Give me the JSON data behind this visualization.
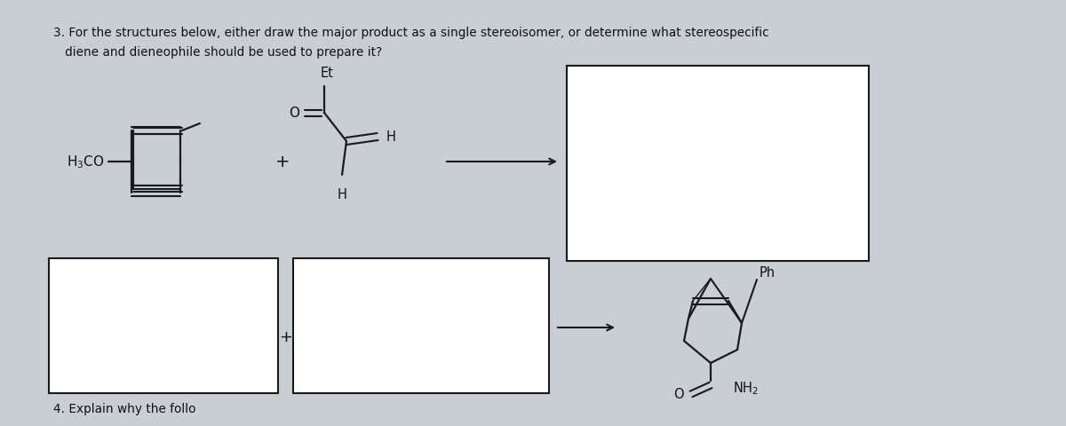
{
  "bg_color": "#c8ced4",
  "page_color": "#d4dade",
  "title_line1": "3. For the structures below, either draw the major product as a single stereoisomer, or determine what stereospecific",
  "title_line2": "   diene and dieneophile should be used to prepare it?",
  "title_fontsize": 9.8,
  "footer_text": "4. Explain why the follo",
  "footer_fontsize": 9.8,
  "text_color": "#111111",
  "line_color": "#1a1a1a",
  "box_color": "white"
}
